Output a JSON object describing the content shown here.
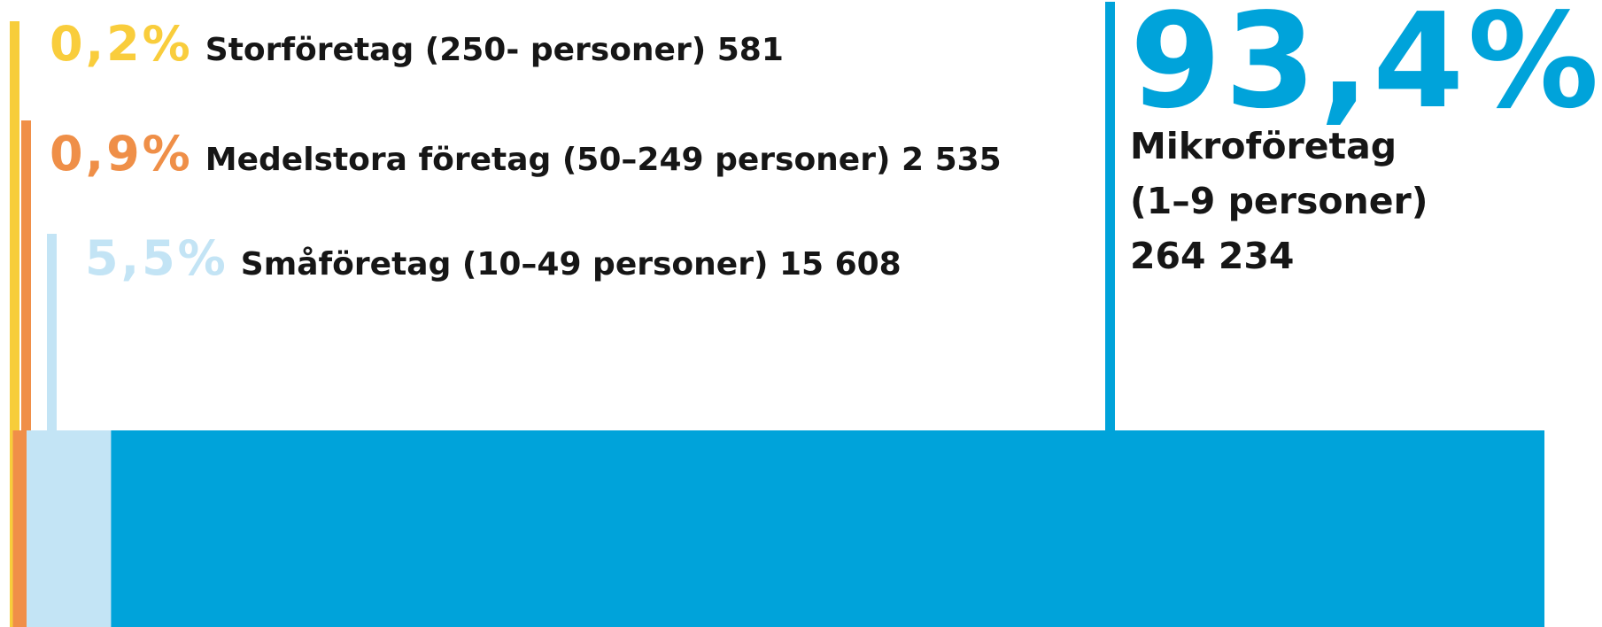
{
  "chart_data": {
    "type": "stacked-bar",
    "xlim": [
      0,
      100
    ],
    "series": [
      {
        "name": "Storföretag (250- personer)",
        "color": "#f7cd3a",
        "values": [
          0.2
        ],
        "value_labels": [
          "0,2%"
        ],
        "count": 581,
        "count_label": "581"
      },
      {
        "name": "Medelstora företag (50–249 personer)",
        "color": "#f08f48",
        "values": [
          0.9
        ],
        "value_labels": [
          "0,9%"
        ],
        "count": 2535,
        "count_label": "2 535"
      },
      {
        "name": "Småföretag (10–49 personer)",
        "color": "#c3e4f5",
        "values": [
          5.5
        ],
        "value_labels": [
          "5,5%"
        ],
        "count": 15608,
        "count_label": "15 608"
      },
      {
        "name": "Mikroföretag (1–9 personer)",
        "color": "#00a3da",
        "values": [
          93.4
        ],
        "value_labels": [
          "93,4%"
        ],
        "count": 264234,
        "count_label": "264 234"
      }
    ]
  }
}
